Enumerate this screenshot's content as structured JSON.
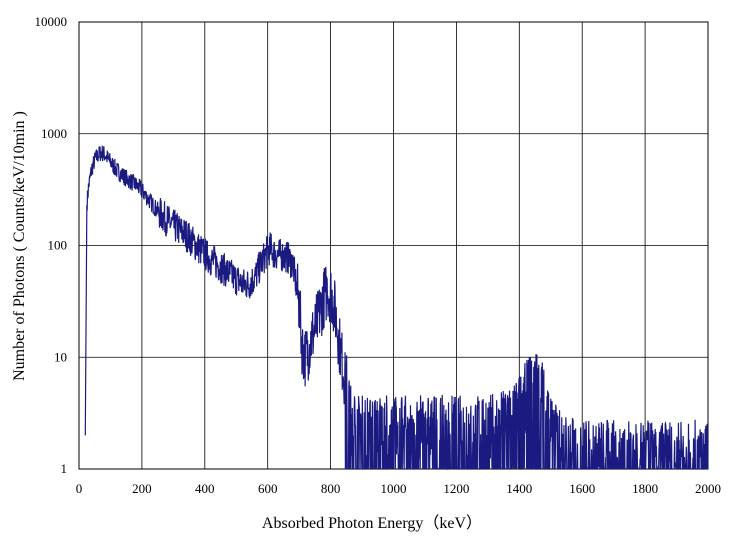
{
  "chart_data": {
    "type": "line",
    "title": "",
    "xlabel": "Absorbed Photon Energy（keV）",
    "ylabel": "Number  of Photons ( Counts/keV/10min  )",
    "xlim": [
      0,
      2000
    ],
    "ylim": [
      1,
      10000
    ],
    "y_scale": "log",
    "grid": true,
    "legend": "none",
    "x_ticks": [
      "0",
      "200",
      "400",
      "600",
      "800",
      "1000",
      "1200",
      "1400",
      "1600",
      "1800",
      "2000"
    ],
    "y_ticks": [
      "1",
      "10",
      "100",
      "1000",
      "10000"
    ],
    "series": [
      {
        "color": "#1a1a80",
        "x": [
          20,
          25,
          30,
          40,
          50,
          60,
          70,
          80,
          100,
          120,
          150,
          180,
          200,
          230,
          260,
          300,
          340,
          380,
          420,
          450,
          480,
          500,
          520,
          540,
          560,
          580,
          600,
          610,
          620,
          640,
          660,
          680,
          700,
          710,
          720,
          730,
          740,
          750,
          760,
          770,
          780,
          790,
          800,
          810,
          820,
          830,
          840,
          850,
          860,
          870,
          880,
          900,
          950,
          1000,
          1050,
          1100,
          1150,
          1200,
          1250,
          1300,
          1350,
          1400,
          1420,
          1440,
          1460,
          1480,
          1500,
          1550,
          1600,
          1700,
          1800,
          1900,
          2000
        ],
        "y": [
          2,
          230,
          330,
          480,
          580,
          640,
          680,
          660,
          560,
          470,
          400,
          350,
          310,
          240,
          190,
          150,
          125,
          95,
          75,
          65,
          55,
          50,
          45,
          45,
          52,
          70,
          90,
          95,
          85,
          82,
          80,
          68,
          30,
          12,
          10,
          12,
          15,
          18,
          22,
          28,
          35,
          40,
          38,
          30,
          20,
          12,
          8,
          5,
          3,
          2.5,
          2,
          2,
          2,
          2,
          2,
          2,
          2,
          2,
          2,
          2,
          2.2,
          3,
          4,
          5,
          5,
          4,
          2,
          1.3,
          1.2,
          1.2,
          1.2,
          1.2,
          1.2
        ]
      }
    ]
  }
}
